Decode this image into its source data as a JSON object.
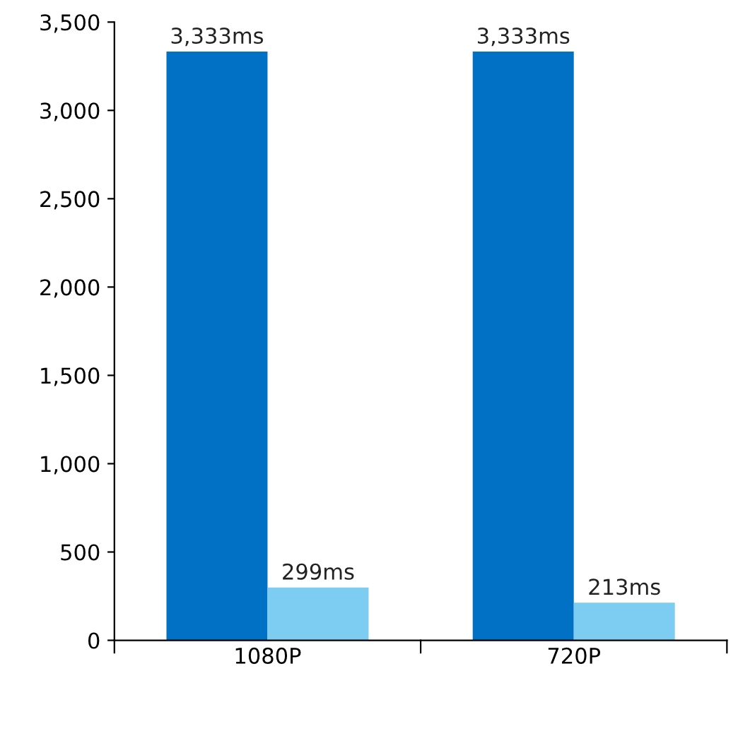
{
  "chart_data": {
    "type": "bar",
    "categories": [
      "1080P",
      "720P"
    ],
    "series": [
      {
        "color": "#0071c5",
        "values": [
          3333,
          3333
        ],
        "value_labels": [
          "3,333ms",
          "3,333ms"
        ]
      },
      {
        "color": "#7dcdf2",
        "values": [
          299,
          213
        ],
        "value_labels": [
          "299ms",
          "213ms"
        ]
      }
    ],
    "ylim": [
      0,
      3500
    ],
    "yticks": [
      0,
      500,
      {
        "value": 1000,
        "label": "1,000"
      },
      {
        "value": 1500,
        "label": "1,500"
      },
      {
        "value": 2000,
        "label": "2,000"
      },
      {
        "value": 2500,
        "label": "2,500"
      },
      {
        "value": 3000,
        "label": "3,000"
      },
      {
        "value": 3500,
        "label": "3,500"
      }
    ],
    "grid": false,
    "legend": false
  }
}
